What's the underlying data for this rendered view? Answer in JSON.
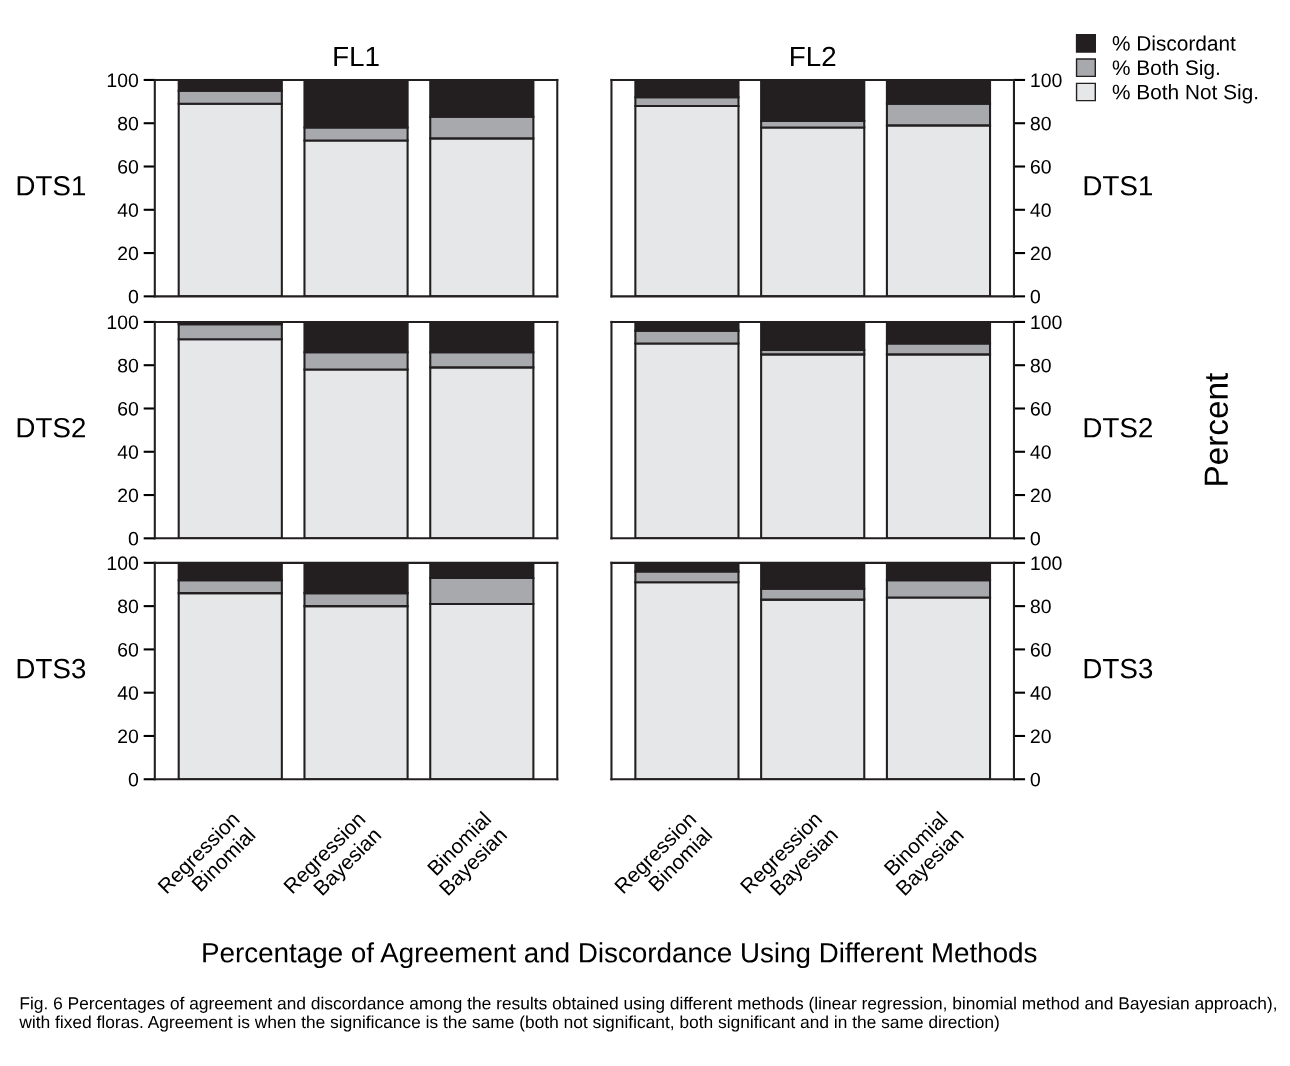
{
  "chart_data": [
    {
      "type": "bar",
      "stacked": true,
      "title": "FL1",
      "ylabel": "DTS1",
      "categories": [
        null,
        null,
        null
      ],
      "ylim": [
        0,
        100
      ],
      "yticks": [
        0,
        20,
        40,
        60,
        80,
        100
      ],
      "tick_labels": "y",
      "series": [
        {
          "color": "#e6e7e8",
          "values": [
            89,
            72,
            73
          ]
        },
        {
          "color": "#a7a9ac",
          "values": [
            6,
            6,
            10
          ]
        },
        {
          "color": "#231f20",
          "values": [
            5,
            22,
            17
          ]
        }
      ]
    },
    {
      "type": "bar",
      "stacked": true,
      "title": "FL2",
      "ylabel": "DTS1",
      "categories": [
        null,
        null,
        null
      ],
      "ylim": [
        0,
        100
      ],
      "yticks": [
        0,
        20,
        40,
        60,
        80,
        100
      ],
      "tick_labels": "y",
      "legend": "top right",
      "series": [
        {
          "name": "% Both Not Sig.",
          "color": "#e6e7e8",
          "values": [
            88,
            78,
            79
          ]
        },
        {
          "name": "% Both Sig.",
          "color": "#a7a9ac",
          "values": [
            4,
            3,
            10
          ]
        },
        {
          "name": "% Discordant",
          "color": "#231f20",
          "values": [
            8,
            19,
            11
          ]
        }
      ]
    },
    {
      "type": "bar",
      "stacked": true,
      "ylabel": "DTS2",
      "categories": [
        null,
        null,
        null
      ],
      "ylim": [
        0,
        100
      ],
      "yticks": [
        0,
        20,
        40,
        60,
        80,
        100
      ],
      "tick_labels": "y",
      "series": [
        {
          "color": "#e6e7e8",
          "values": [
            92,
            78,
            79
          ]
        },
        {
          "color": "#a7a9ac",
          "values": [
            7,
            8,
            7
          ]
        },
        {
          "color": "#231f20",
          "values": [
            1,
            14,
            14
          ]
        }
      ]
    },
    {
      "type": "bar",
      "stacked": true,
      "ylabel": "DTS2",
      "annotations": [
        "Percent"
      ],
      "categories": [
        null,
        null,
        null
      ],
      "ylim": [
        0,
        100
      ],
      "yticks": [
        0,
        20,
        40,
        60,
        80,
        100
      ],
      "tick_labels": "y",
      "series": [
        {
          "color": "#e6e7e8",
          "values": [
            90,
            85,
            85
          ]
        },
        {
          "color": "#a7a9ac",
          "values": [
            6,
            2,
            5
          ]
        },
        {
          "color": "#231f20",
          "values": [
            4,
            13,
            10
          ]
        }
      ]
    },
    {
      "type": "bar",
      "stacked": true,
      "ylabel": "DTS3",
      "categories": [
        "Regression\nBinomial",
        "Regression\nBayesian",
        "Binomial\nBayesian"
      ],
      "ylim": [
        0,
        100
      ],
      "yticks": [
        0,
        20,
        40,
        60,
        80,
        100
      ],
      "series": [
        {
          "color": "#e6e7e8",
          "values": [
            86,
            80,
            81
          ]
        },
        {
          "color": "#a7a9ac",
          "values": [
            6,
            6,
            12
          ]
        },
        {
          "color": "#231f20",
          "values": [
            8,
            14,
            7
          ]
        }
      ]
    },
    {
      "type": "bar",
      "stacked": true,
      "ylabel": "DTS3",
      "annotations": [
        "Percentage of Agreement and Discordance Using Different Methods",
        "Fig. 6 Percentages of agreement and discordance among the results obtained using different methods (linear regression, binomial method and Bayesian approach), with fixed floras. Agreement is when the significance is the same (both not significant, both significant and in the same direction)"
      ],
      "categories": [
        "Regression\nBinomial",
        "Regression\nBayesian",
        "Binomial\nBayesian"
      ],
      "ylim": [
        0,
        100
      ],
      "yticks": [
        0,
        20,
        40,
        60,
        80,
        100
      ],
      "series": [
        {
          "color": "#e6e7e8",
          "values": [
            91,
            83,
            84
          ]
        },
        {
          "color": "#a7a9ac",
          "values": [
            5,
            5,
            8
          ]
        },
        {
          "color": "#231f20",
          "values": [
            4,
            12,
            8
          ]
        }
      ]
    }
  ]
}
